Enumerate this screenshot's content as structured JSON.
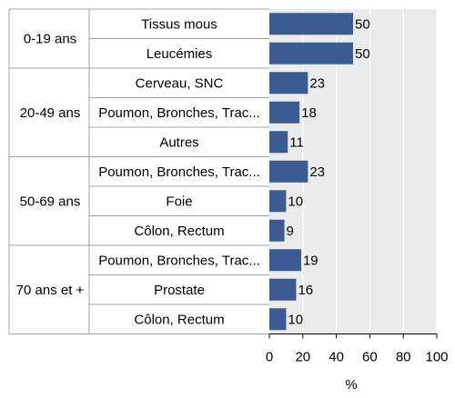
{
  "chart_data": {
    "type": "bar",
    "orientation": "horizontal",
    "xlabel": "%",
    "xlim": [
      0,
      100
    ],
    "xticks": [
      0,
      20,
      40,
      60,
      80,
      100
    ],
    "bar_color": "#3b5b92",
    "plot_background": "#ebebeb",
    "groups": [
      {
        "label": "0-19 ans",
        "rows": [
          {
            "category": "Tissus mous",
            "value": 50
          },
          {
            "category": "Leucémies",
            "value": 50
          }
        ]
      },
      {
        "label": "20-49 ans",
        "rows": [
          {
            "category": "Cerveau, SNC",
            "value": 23
          },
          {
            "category": "Poumon, Bronches, Trac...",
            "value": 18
          },
          {
            "category": "Autres",
            "value": 11
          }
        ]
      },
      {
        "label": "50-69 ans",
        "rows": [
          {
            "category": "Poumon, Bronches, Trac...",
            "value": 23
          },
          {
            "category": "Foie",
            "value": 10
          },
          {
            "category": "Côlon, Rectum",
            "value": 9
          }
        ]
      },
      {
        "label": "70 ans et +",
        "rows": [
          {
            "category": "Poumon, Bronches, Trac...",
            "value": 19
          },
          {
            "category": "Prostate",
            "value": 16
          },
          {
            "category": "Côlon, Rectum",
            "value": 10
          }
        ]
      }
    ]
  }
}
